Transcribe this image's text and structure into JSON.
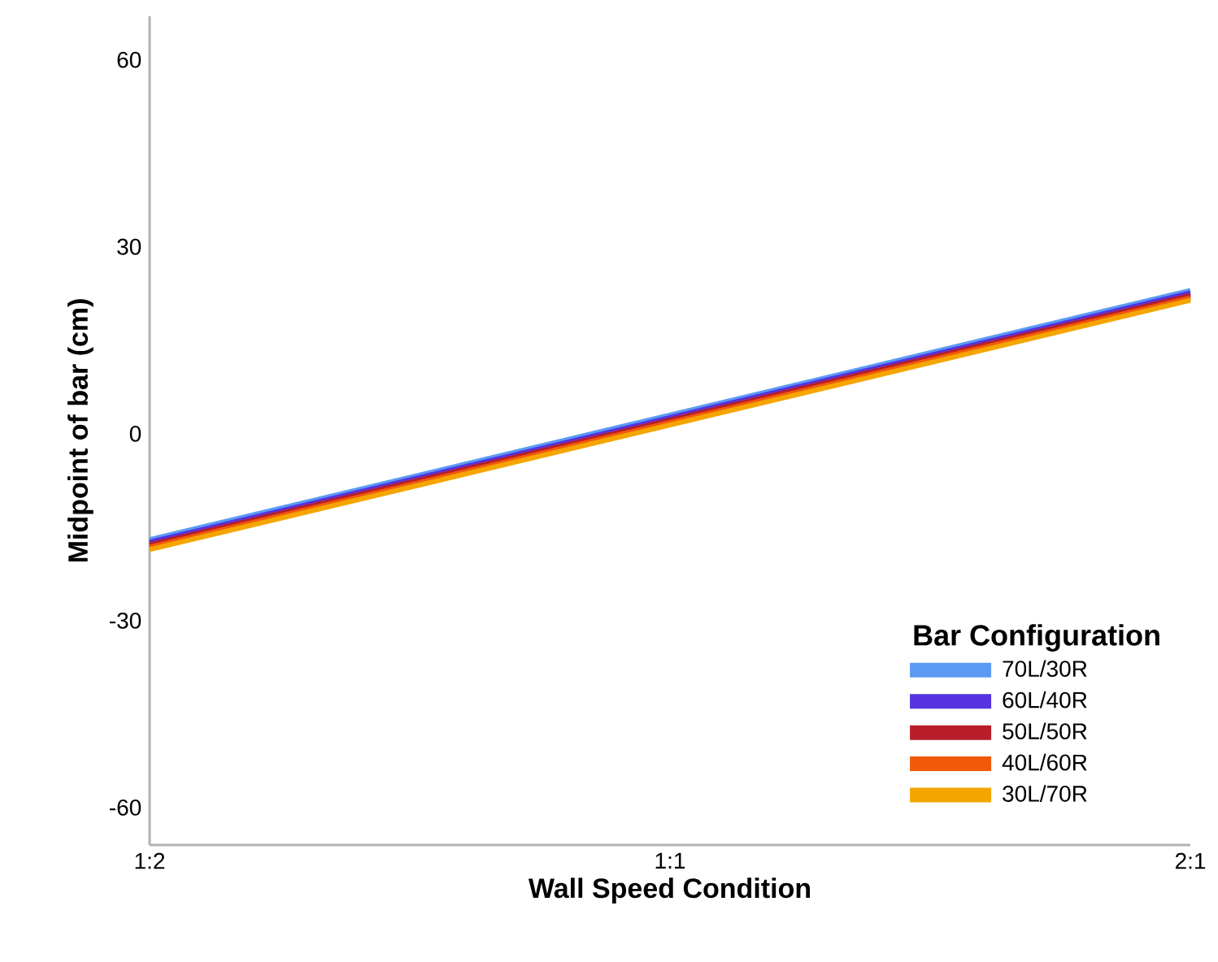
{
  "chart_data": {
    "type": "line",
    "xlabel": "Wall Speed Condition",
    "ylabel": "Midpoint of bar (cm)",
    "legend_title": "Bar Configuration",
    "categories": [
      "1:2",
      "1:1",
      "2:1"
    ],
    "series": [
      {
        "name": "70L/30R",
        "color": "#5b9bf5",
        "values": [
          -17.0,
          3.0,
          23.0
        ]
      },
      {
        "name": "60L/40R",
        "color": "#5533e0",
        "values": [
          -17.4,
          2.6,
          22.6
        ]
      },
      {
        "name": "50L/50R",
        "color": "#b81e2a",
        "values": [
          -17.8,
          2.2,
          22.2
        ]
      },
      {
        "name": "40L/60R",
        "color": "#f05a0a",
        "values": [
          -18.2,
          1.8,
          21.8
        ]
      },
      {
        "name": "30L/70R",
        "color": "#f5a500",
        "values": [
          -18.6,
          1.4,
          21.4
        ]
      }
    ],
    "ylim": [
      -66,
      67
    ],
    "yticks": [
      -60,
      -30,
      0,
      30,
      60
    ],
    "legend": "bottom right",
    "line_style": "solid"
  }
}
